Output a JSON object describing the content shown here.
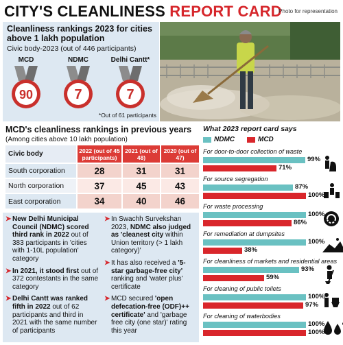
{
  "header": {
    "title_part1": "CITY'S CLEANLINESS",
    "title_part2": "REPORT CARD",
    "photo_credit": "Photo for representation"
  },
  "rankings_2023": {
    "heading": "Cleanliness rankings 2023 for cities above 1 lakh population",
    "subheading": "Civic body-2023 (out of 446 participants)",
    "medals": [
      {
        "name": "MCD",
        "rank": "90"
      },
      {
        "name": "NDMC",
        "rank": "7"
      },
      {
        "name": "Delhi Cantt*",
        "rank": "7"
      }
    ],
    "footnote": "*Out of 61 participants"
  },
  "previous_years": {
    "heading": "MCD's cleanliness rankings in previous years",
    "subheading": "(Among cities above 10 lakh population)",
    "columns": [
      "Civic body",
      "2022 (out of 45 participants)",
      "2021 (out of 48)",
      "2020 (out of 47)"
    ],
    "rows": [
      {
        "name": "South corporation",
        "v2022": "28",
        "v2021": "31",
        "v2020": "31"
      },
      {
        "name": "North corporation",
        "v2022": "37",
        "v2021": "45",
        "v2020": "43"
      },
      {
        "name": "East corporation",
        "v2022": "34",
        "v2021": "40",
        "v2020": "46"
      }
    ]
  },
  "notes_left": [
    {
      "bold": "New Delhi Municipal Council (NDMC) scored third rank in 2022",
      "rest": " out of 383 participants in 'cities with 1-10L population' category"
    },
    {
      "bold": "In 2021, it stood first",
      "rest": " out of 372 contestants in the same category"
    },
    {
      "bold": "Delhi Cantt was ranked fifth in 2022",
      "rest": " out of 62 participants and third in 2021 with the same number of participants"
    }
  ],
  "notes_right": [
    {
      "pre": "In Swachh Survekshan 2023, ",
      "bold": "NDMC also judged as 'cleanest city",
      "rest": " within Union territory (> 1 lakh category)'"
    },
    {
      "pre": "It has also received a ",
      "bold": "'5-star garbage-free city'",
      "rest": " ranking and 'water plus' certificate"
    },
    {
      "pre": "MCD secured ",
      "bold": "'open defecation-free (ODF)++ certificate'",
      "rest": " and 'garbage free city (one star)' rating this year"
    }
  ],
  "report_card": {
    "heading": "What 2023 report card says",
    "legend": {
      "ndmc": "NDMC",
      "mcd": "MCD"
    },
    "colors": {
      "ndmc": "#6ac1c2",
      "mcd": "#d9262b"
    },
    "categories": [
      {
        "label": "For door-to-door collection of waste",
        "ndmc": 99,
        "mcd": 71,
        "ndmc_label": "99%",
        "mcd_label": "71%",
        "icon": "garbage-bag-icon"
      },
      {
        "label": "For source segregation",
        "ndmc": 87,
        "mcd": 100,
        "ndmc_label": "87%",
        "mcd_label": "100%",
        "icon": "bins-icon"
      },
      {
        "label": "For waste processing",
        "ndmc": 100,
        "mcd": 86,
        "ndmc_label": "100%",
        "mcd_label": "86%",
        "icon": "recycle-globe-icon"
      },
      {
        "label": "For remediation at dumpsites",
        "ndmc": 100,
        "mcd": 38,
        "ndmc_label": "100%",
        "mcd_label": "38%",
        "icon": "dumpsite-icon"
      },
      {
        "label": "For cleanliness of markets and residential areas",
        "ndmc": 93,
        "mcd": 59,
        "ndmc_label": "93%",
        "mcd_label": "59%",
        "icon": "sweeper-icon"
      },
      {
        "label": "For cleaning of public toilets",
        "ndmc": 100,
        "mcd": 97,
        "ndmc_label": "100%",
        "mcd_label": "97%",
        "icon": "toilet-icon"
      },
      {
        "label": "For cleaning of waterbodies",
        "ndmc": 100,
        "mcd": 100,
        "ndmc_label": "100%",
        "mcd_label": "100%",
        "icon": "water-drops-icon"
      }
    ]
  },
  "chart_data": {
    "type": "bar",
    "title": "What 2023 report card says",
    "categories": [
      "For door-to-door collection of waste",
      "For source segregation",
      "For waste processing",
      "For remediation at dumpsites",
      "For cleanliness of markets and residential areas",
      "For cleaning of public toilets",
      "For cleaning of waterbodies"
    ],
    "series": [
      {
        "name": "NDMC",
        "values": [
          99,
          87,
          100,
          100,
          93,
          100,
          100
        ]
      },
      {
        "name": "MCD",
        "values": [
          71,
          100,
          86,
          38,
          59,
          97,
          100
        ]
      }
    ],
    "unit": "%",
    "xlim": [
      0,
      100
    ],
    "orientation": "horizontal"
  }
}
